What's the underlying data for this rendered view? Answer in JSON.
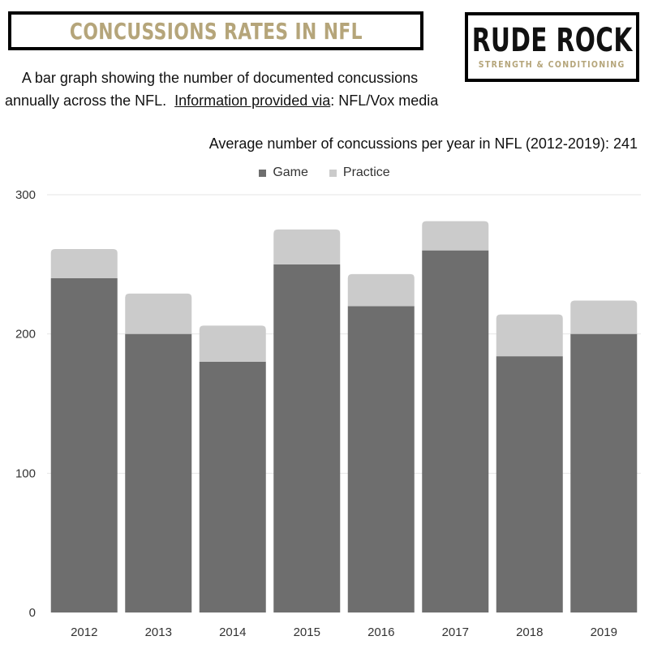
{
  "header": {
    "title": "CONCUSSIONS RATES IN NFL",
    "description_line1": "A bar graph showing the number of documented concussions",
    "description_line2_text": "annually across the NFL.",
    "source_label": "Information provided via",
    "source_value": ": NFL/Vox media"
  },
  "logo": {
    "main": "RUDE ROCK",
    "sub": "STRENGTH & CONDITIONING"
  },
  "chart_data": {
    "type": "bar",
    "stacked": true,
    "title": "Average number of concussions per year in NFL (2012-2019): 241",
    "categories": [
      "2012",
      "2013",
      "2014",
      "2015",
      "2016",
      "2017",
      "2018",
      "2019"
    ],
    "series": [
      {
        "name": "Game",
        "color": "#6e6e6e",
        "values": [
          240,
          200,
          180,
          250,
          220,
          260,
          184,
          200
        ]
      },
      {
        "name": "Practice",
        "color": "#cbcbcb",
        "values": [
          21,
          29,
          26,
          25,
          23,
          21,
          30,
          24
        ]
      }
    ],
    "ylim": [
      0,
      300
    ],
    "yticks": [
      0,
      100,
      200,
      300
    ],
    "xlabel": "",
    "ylabel": "",
    "grid": true,
    "legend": "top-center"
  },
  "colors": {
    "title_gold": "#b5a57a",
    "grid": "#e6e6e6"
  }
}
